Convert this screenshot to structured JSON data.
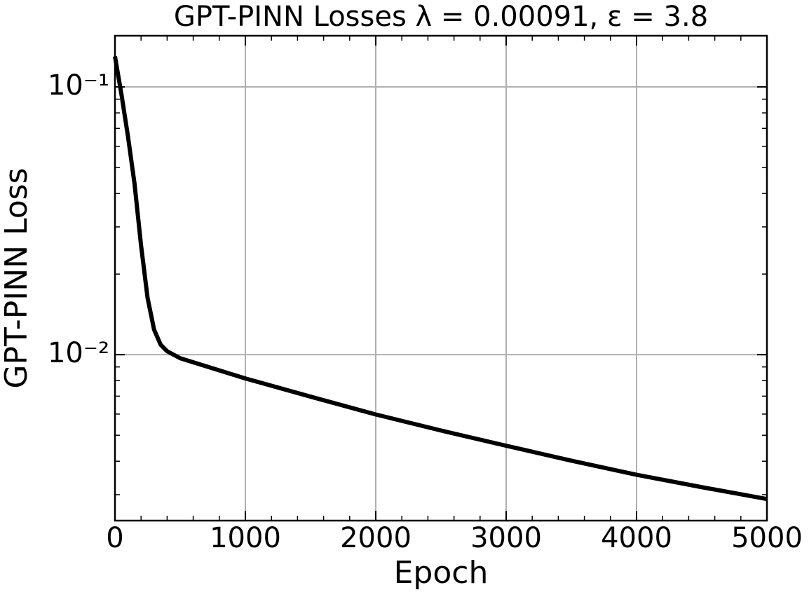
{
  "chart_data": {
    "type": "line",
    "title": "GPT-PINN Losses λ = 0.00091, ε = 3.8",
    "xlabel": "Epoch",
    "ylabel": "GPT-PINN Loss",
    "x": [
      0,
      50,
      100,
      150,
      200,
      250,
      300,
      350,
      400,
      500,
      1000,
      1500,
      2000,
      2500,
      3000,
      3500,
      4000,
      4500,
      5000
    ],
    "series": [
      {
        "name": "GPT-PINN Loss",
        "color": "#000000",
        "values": [
          0.13,
          0.0936,
          0.0652,
          0.0435,
          0.0256,
          0.0163,
          0.0124,
          0.0109,
          0.0103,
          0.0097,
          0.00815,
          0.00697,
          0.00598,
          0.00521,
          0.00457,
          0.00402,
          0.00356,
          0.0032,
          0.00289
        ]
      }
    ],
    "xlim": [
      0,
      5000
    ],
    "xticks": [
      0,
      1000,
      2000,
      3000,
      4000,
      5000
    ],
    "xminorticks": [
      200,
      400,
      600,
      800,
      1200,
      1400,
      1600,
      1800,
      2200,
      2400,
      2600,
      2800,
      3200,
      3400,
      3600,
      3800,
      4200,
      4400,
      4600,
      4800
    ],
    "ylim": [
      0.0024,
      0.1553
    ],
    "yscale": "log",
    "yticks": [
      {
        "value": 0.01,
        "label": "10⁻²"
      },
      {
        "value": 0.1,
        "label": "10⁻¹"
      }
    ],
    "yminorticks": [
      0.003,
      0.004,
      0.005,
      0.006,
      0.007,
      0.008,
      0.009,
      0.02,
      0.03,
      0.04,
      0.05,
      0.06,
      0.07,
      0.08,
      0.09
    ],
    "grid": true
  }
}
